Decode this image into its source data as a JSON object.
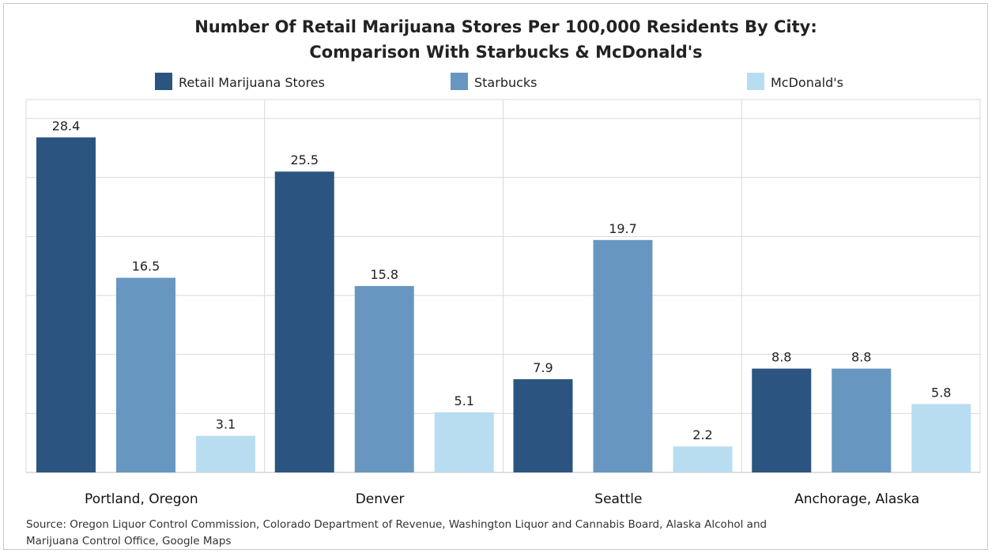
{
  "chart_data": {
    "type": "bar",
    "title": "Number Of Retail Marijuana Stores Per 100,000 Residents By City:",
    "subtitle": "Comparison With Starbucks & McDonald's",
    "categories": [
      "Portland, Oregon",
      "Denver",
      "Seattle",
      "Anchorage, Alaska"
    ],
    "series": [
      {
        "name": "Retail Marijuana Stores",
        "values": [
          28.4,
          25.5,
          7.9,
          8.8
        ],
        "color": "#2b5580"
      },
      {
        "name": "Starbucks",
        "values": [
          16.5,
          15.8,
          19.7,
          8.8
        ],
        "color": "#6797c1"
      },
      {
        "name": "McDonald's",
        "values": [
          3.1,
          5.1,
          2.2,
          5.8
        ],
        "color": "#b9ddf0"
      }
    ],
    "ylim": [
      0,
      30
    ],
    "grid": true,
    "legend_position": "top",
    "xlabel": "",
    "ylabel": "",
    "source": "Source: Oregon Liquor Control Commission, Colorado Department of Revenue, Washington Liquor and Cannabis Board, Alaska Alcohol and Marijuana Control Office, Google Maps"
  }
}
